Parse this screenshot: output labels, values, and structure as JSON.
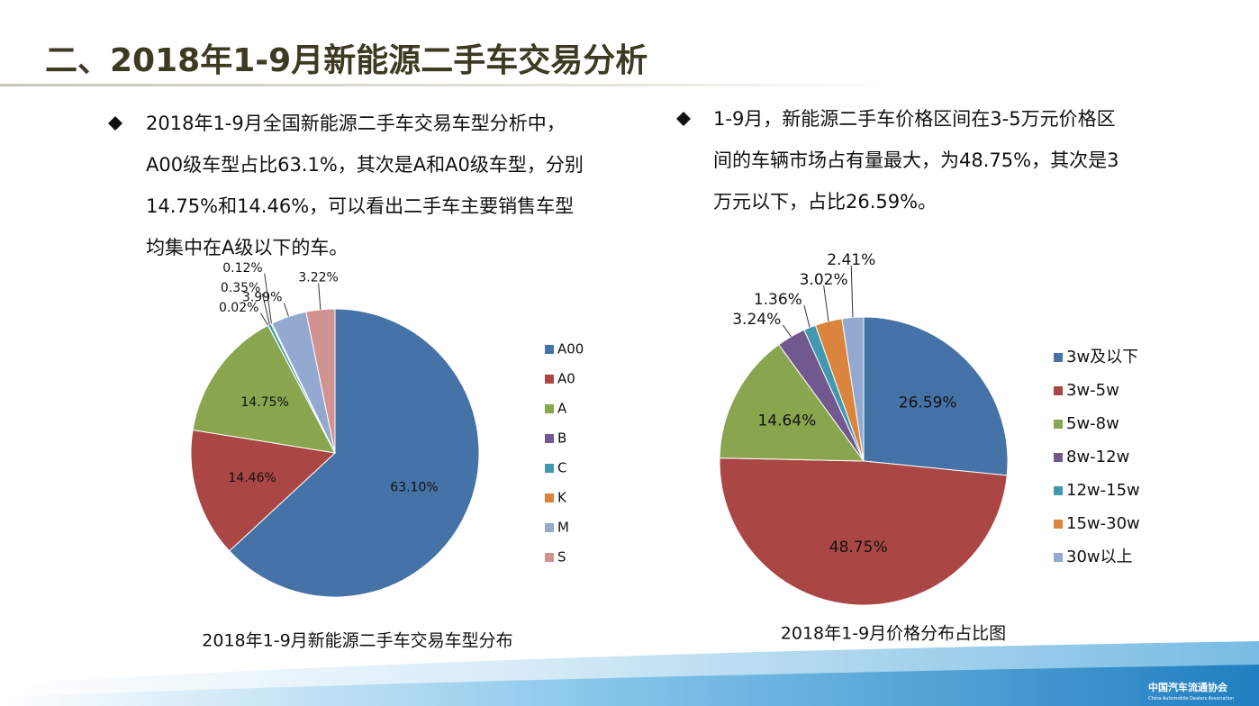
{
  "title": "二、2018年1-9月新能源二手车交易分析",
  "bullets": [
    "2018年1-9月全国新能源二手车交易车型分析中，A00级车型占比63.1%，其次是A和A0级车型，分别14.75%和14.46%，可以看出二手车主要销售车型均集中在A级以下的车。",
    "1-9月，新能源二手车价格区间在3-5万元价格区间的车辆市场占有量最大，为48.75%，其次是3万元以下，占比26.59%。"
  ],
  "footer": {
    "logo_text": "中国汽车流通协会",
    "logo_subtext": "China Automobile Dealers Association"
  },
  "chart_data": [
    {
      "type": "pie",
      "title": "2018年1-9月新能源二手车交易车型分布",
      "categories": [
        "A00",
        "A0",
        "A",
        "B",
        "C",
        "K",
        "M",
        "S"
      ],
      "values": [
        63.1,
        14.46,
        14.75,
        0.02,
        0.35,
        0.12,
        3.99,
        3.22
      ],
      "value_labels": [
        "63.10%",
        "14.46%",
        "14.75%",
        "0.02%",
        "0.35%",
        "0.12%",
        "3.99%",
        "3.22%"
      ],
      "colors": [
        "#4572a7",
        "#aa4643",
        "#89a54e",
        "#71588f",
        "#4198af",
        "#db843d",
        "#93a9cf",
        "#d19392"
      ]
    },
    {
      "type": "pie",
      "title": "2018年1-9月价格分布占比图",
      "categories": [
        "3w及以下",
        "3w-5w",
        "5w-8w",
        "8w-12w",
        "12w-15w",
        "15w-30w",
        "30w以上"
      ],
      "values": [
        26.59,
        48.75,
        14.64,
        3.24,
        1.36,
        3.02,
        2.41
      ],
      "value_labels": [
        "26.59%",
        "48.75%",
        "14.64%",
        "3.24%",
        "1.36%",
        "3.02%",
        "2.41%"
      ],
      "colors": [
        "#4572a7",
        "#aa4643",
        "#89a54e",
        "#71588f",
        "#4198af",
        "#db843d",
        "#93a9cf"
      ]
    }
  ]
}
